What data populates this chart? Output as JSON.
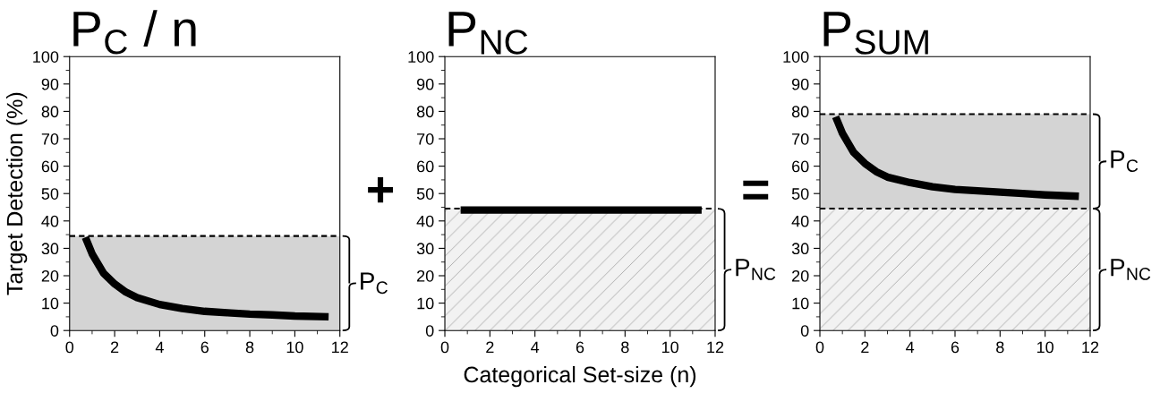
{
  "chart_data": [
    {
      "type": "line",
      "title": "P$_{C}$ / n",
      "ylabel": "Target Detection (%)",
      "xlim": [
        0,
        12
      ],
      "xticks": [
        0,
        2,
        4,
        6,
        8,
        10,
        12
      ],
      "ylim": [
        0,
        100
      ],
      "yticks": [
        0,
        10,
        20,
        30,
        40,
        50,
        60,
        70,
        80,
        90,
        100
      ],
      "grid": false,
      "marker": "none",
      "line_style": "solid",
      "series": [
        {
          "color": "#000000",
          "x": [
            0.7,
            1,
            1.5,
            2,
            2.5,
            3,
            4,
            5,
            6,
            7,
            8,
            9,
            10,
            11.5
          ],
          "values": [
            34,
            28,
            21,
            17,
            14,
            12,
            9.5,
            8,
            7,
            6.5,
            6,
            5.7,
            5.3,
            5
          ]
        }
      ],
      "bands": [
        {
          "axis": "y",
          "from": 0,
          "to": 34.5,
          "label": "P$_{C}$",
          "color": "#d4d4d4"
        }
      ],
      "ref_lines": [
        {
          "axis": "y",
          "value": 34.5,
          "line_style": "dashed",
          "color": "#000000"
        }
      ],
      "annotations": [
        "+"
      ]
    },
    {
      "type": "line",
      "title": "P$_{NC}$",
      "xlabel": "Categorical Set-size (n)",
      "xlim": [
        0,
        12
      ],
      "xticks": [
        0,
        2,
        4,
        6,
        8,
        10,
        12
      ],
      "ylim": [
        0,
        100
      ],
      "yticks": [
        0,
        10,
        20,
        30,
        40,
        50,
        60,
        70,
        80,
        90,
        100
      ],
      "grid": false,
      "marker": "none",
      "line_style": "solid",
      "series": [
        {
          "color": "#000000",
          "x": [
            0.7,
            11.4
          ],
          "values": [
            44,
            44
          ]
        }
      ],
      "bands": [
        {
          "axis": "y",
          "from": 0,
          "to": 44.5,
          "label": "P$_{NC}$",
          "color": "#f2f2f2"
        }
      ],
      "ref_lines": [
        {
          "axis": "y",
          "value": 44.5,
          "line_style": "dashed",
          "color": "#000000"
        }
      ],
      "annotations": [
        "="
      ]
    },
    {
      "type": "line",
      "title": "P$_{SUM}$",
      "xlim": [
        0,
        12
      ],
      "xticks": [
        0,
        2,
        4,
        6,
        8,
        10,
        12
      ],
      "ylim": [
        0,
        100
      ],
      "yticks": [
        0,
        10,
        20,
        30,
        40,
        50,
        60,
        70,
        80,
        90,
        100
      ],
      "grid": false,
      "marker": "none",
      "line_style": "solid",
      "series": [
        {
          "color": "#000000",
          "x": [
            0.7,
            1,
            1.5,
            2,
            2.5,
            3,
            4,
            5,
            6,
            7,
            8,
            9,
            10,
            11.5
          ],
          "values": [
            78,
            72,
            65,
            61,
            58,
            56,
            54,
            52.5,
            51.5,
            51,
            50.5,
            50,
            49.5,
            49
          ]
        }
      ],
      "bands": [
        {
          "axis": "y",
          "from": 44.5,
          "to": 79,
          "label": "P$_{C}$",
          "color": "#d4d4d4"
        },
        {
          "axis": "y",
          "from": 0,
          "to": 44.5,
          "label": "P$_{NC}$",
          "color": "#f2f2f2"
        }
      ],
      "ref_lines": [
        {
          "axis": "y",
          "value": 79,
          "line_style": "dashed",
          "color": "#000000"
        },
        {
          "axis": "y",
          "value": 44.5,
          "line_style": "dashed",
          "color": "#000000"
        }
      ]
    }
  ]
}
